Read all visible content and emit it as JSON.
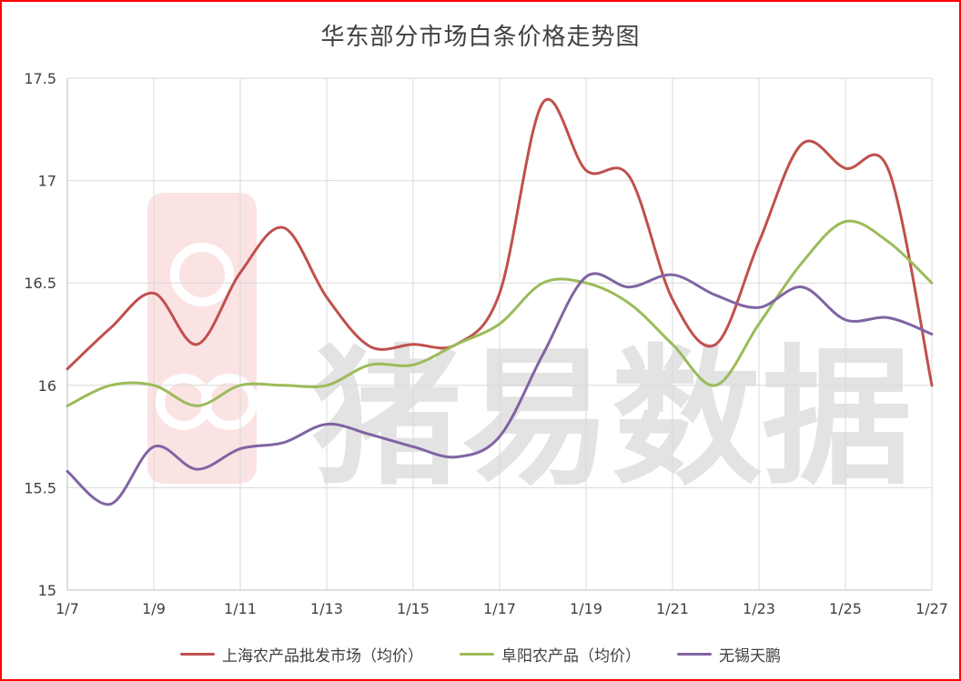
{
  "chart_data": {
    "type": "line",
    "title": "华东部分市场白条价格走势图",
    "xlabel": "",
    "ylabel": "",
    "ylim": [
      15,
      17.5
    ],
    "yticks": [
      "15",
      "15.5",
      "16",
      "16.5",
      "17",
      "17.5"
    ],
    "x": [
      "1/7",
      "1/8",
      "1/9",
      "1/10",
      "1/11",
      "1/12",
      "1/13",
      "1/14",
      "1/15",
      "1/16",
      "1/17",
      "1/18",
      "1/19",
      "1/20",
      "1/21",
      "1/22",
      "1/23",
      "1/24",
      "1/25",
      "1/26",
      "1/27"
    ],
    "xtick_labels": [
      "1/7",
      "1/9",
      "1/11",
      "1/13",
      "1/15",
      "1/17",
      "1/19",
      "1/21",
      "1/23",
      "1/25",
      "1/27"
    ],
    "grid": true,
    "legend_position": "bottom",
    "series": [
      {
        "name": "上海农产品批发市场（均价）",
        "color": "#c0504d",
        "values": [
          16.08,
          16.28,
          16.45,
          16.2,
          16.55,
          16.77,
          16.43,
          16.19,
          16.2,
          16.2,
          16.45,
          17.38,
          17.05,
          17.02,
          16.42,
          16.2,
          16.7,
          17.18,
          17.06,
          17.05,
          16.0
        ]
      },
      {
        "name": "阜阳农产品（均价）",
        "color": "#9bbb59",
        "values": [
          15.9,
          16.0,
          16.0,
          15.9,
          16.0,
          16.0,
          16.0,
          16.1,
          16.1,
          16.2,
          16.3,
          16.5,
          16.5,
          16.4,
          16.2,
          16.0,
          16.3,
          16.6,
          16.8,
          16.7,
          16.5
        ]
      },
      {
        "name": "无锡天鹏",
        "color": "#8064a2",
        "values": [
          15.58,
          15.42,
          15.7,
          15.59,
          15.69,
          15.72,
          15.81,
          15.76,
          15.7,
          15.65,
          15.75,
          16.15,
          16.53,
          16.48,
          16.54,
          16.44,
          16.38,
          16.48,
          16.32,
          16.33,
          16.25
        ]
      }
    ]
  },
  "watermark": {
    "text": "猪易数据",
    "color": "#d9d9d9"
  }
}
